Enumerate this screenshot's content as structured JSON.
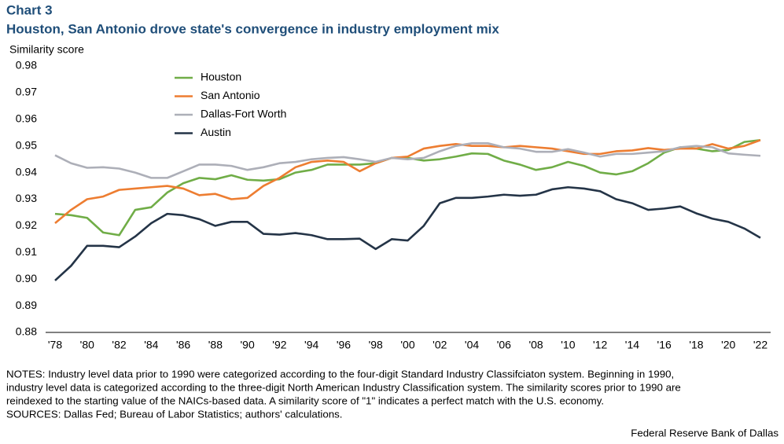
{
  "chart_data": {
    "type": "line",
    "title": "Chart 3",
    "subtitle": "Houston, San Antonio drove state's convergence in industry employment mix",
    "y_label": "Similarity score",
    "categories": [
      "'78",
      null,
      "'80",
      null,
      "'82",
      null,
      "'84",
      null,
      "'86",
      null,
      "'88",
      null,
      "'90",
      null,
      "'92",
      null,
      "'94",
      null,
      "'96",
      null,
      "'98",
      null,
      "'00",
      null,
      "'02",
      null,
      "'04",
      null,
      "'06",
      null,
      "'08",
      null,
      "'10",
      null,
      "'12",
      null,
      "'14",
      null,
      "'16",
      null,
      "'18",
      null,
      "'20",
      null,
      "'22"
    ],
    "series": [
      {
        "name": "Houston",
        "color": "#70ad47",
        "values": [
          0.9245,
          0.924,
          0.923,
          0.9175,
          0.9165,
          0.926,
          0.927,
          0.9325,
          0.936,
          0.938,
          0.9375,
          0.939,
          0.9373,
          0.937,
          0.9375,
          0.94,
          0.941,
          0.943,
          0.943,
          0.943,
          0.9435,
          0.9455,
          0.9455,
          0.9445,
          0.945,
          0.946,
          0.9472,
          0.947,
          0.9445,
          0.943,
          0.941,
          0.942,
          0.944,
          0.9425,
          0.94,
          0.9393,
          0.9405,
          0.9435,
          0.9475,
          0.9495,
          0.949,
          0.948,
          0.9485,
          0.9515,
          0.9522
        ]
      },
      {
        "name": "San Antonio",
        "color": "#ed7d31",
        "values": [
          0.921,
          0.926,
          0.93,
          0.931,
          0.9335,
          0.934,
          0.9345,
          0.935,
          0.934,
          0.9315,
          0.932,
          0.93,
          0.9305,
          0.935,
          0.938,
          0.942,
          0.944,
          0.9445,
          0.944,
          0.9405,
          0.9435,
          0.9455,
          0.946,
          0.949,
          0.95,
          0.9507,
          0.95,
          0.95,
          0.9495,
          0.95,
          0.9495,
          0.949,
          0.948,
          0.947,
          0.947,
          0.948,
          0.9483,
          0.9492,
          0.9485,
          0.949,
          0.949,
          0.9507,
          0.949,
          0.95,
          0.9522
        ]
      },
      {
        "name": "Dallas-Fort Worth",
        "color": "#adafb8",
        "values": [
          0.9465,
          0.9435,
          0.9418,
          0.942,
          0.9415,
          0.94,
          0.938,
          0.938,
          0.9405,
          0.943,
          0.943,
          0.9425,
          0.941,
          0.942,
          0.9435,
          0.944,
          0.945,
          0.9455,
          0.9458,
          0.945,
          0.944,
          0.9455,
          0.945,
          0.9455,
          0.948,
          0.95,
          0.951,
          0.951,
          0.9495,
          0.949,
          0.9478,
          0.9478,
          0.9488,
          0.9475,
          0.946,
          0.947,
          0.947,
          0.9475,
          0.948,
          0.9495,
          0.95,
          0.9495,
          0.9472,
          0.9467,
          0.9463
        ]
      },
      {
        "name": "Austin",
        "color": "#243447",
        "values": [
          0.8995,
          0.905,
          0.9125,
          0.9125,
          0.912,
          0.916,
          0.921,
          0.9245,
          0.924,
          0.9225,
          0.92,
          0.9215,
          0.9215,
          0.917,
          0.9167,
          0.9173,
          0.9165,
          0.915,
          0.915,
          0.9152,
          0.9113,
          0.915,
          0.9145,
          0.92,
          0.9285,
          0.9305,
          0.9305,
          0.931,
          0.9317,
          0.9313,
          0.9317,
          0.9337,
          0.9345,
          0.934,
          0.933,
          0.93,
          0.9285,
          0.926,
          0.9265,
          0.9273,
          0.9247,
          0.9227,
          0.9215,
          0.919,
          0.9155
        ]
      }
    ],
    "ylim": [
      0.88,
      0.98
    ],
    "yticks": [
      0.88,
      0.89,
      {
        "value": 0.9,
        "label": "0.90"
      },
      0.91,
      0.92,
      0.93,
      0.94,
      0.95,
      0.96,
      0.97,
      0.98
    ],
    "grid": false,
    "legend": "top-left"
  },
  "notes": [
    "NOTES: Industry level data prior to 1990 were categorized according to the four-digit Standard Industry Classifciaton system. Beginning in 1990,",
    "industry level data is categorized according to the three-digit North American Industry Classification system. The similarity scores prior to 1990 are",
    "reindexed to the starting value of the NAICs-based data. A  similarity score of \"1\" indicates a perfect match with the U.S. economy.",
    "SOURCES: Dallas Fed; Bureau of Labor Statistics; authors' calculations."
  ],
  "credit": "Federal Reserve Bank of Dallas"
}
